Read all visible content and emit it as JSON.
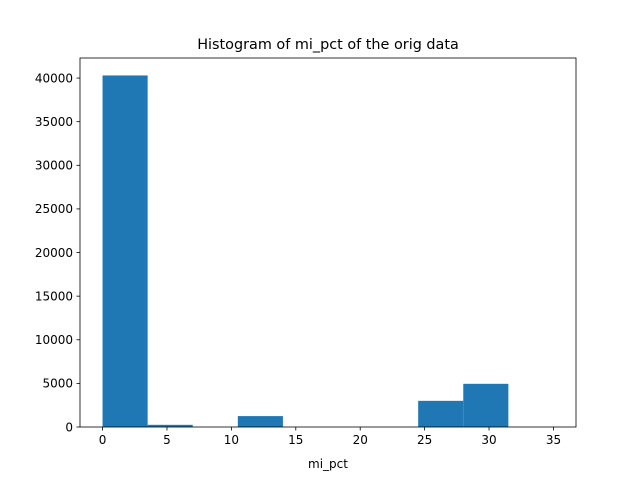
{
  "chart_data": {
    "type": "bar",
    "title": "Histogram of mi_pct of the orig data",
    "xlabel": "mi_pct",
    "ylabel": "",
    "bin_edges": [
      0,
      3.5,
      7,
      10.5,
      14,
      17.5,
      21,
      24.5,
      28,
      31.5,
      35
    ],
    "values": [
      40300,
      250,
      0,
      1250,
      0,
      0,
      0,
      3000,
      4950,
      0
    ],
    "xlim": [
      -1.75,
      36.75
    ],
    "ylim": [
      0,
      42300
    ],
    "xticks": [
      0,
      5,
      10,
      15,
      20,
      25,
      30,
      35
    ],
    "yticks": [
      0,
      5000,
      10000,
      15000,
      20000,
      25000,
      30000,
      35000,
      40000
    ],
    "bar_color": "#1f77b4",
    "grid": false,
    "legend": "none"
  }
}
